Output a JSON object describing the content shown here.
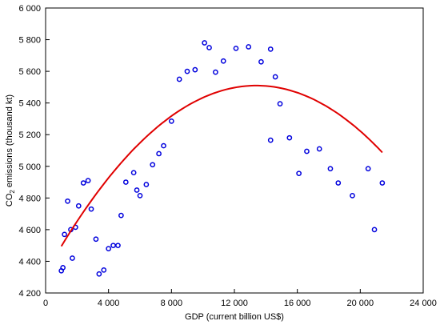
{
  "chart_data": {
    "type": "scatter",
    "xlabel": "GDP (current billion US$)",
    "ylabel_main": "CO",
    "ylabel_sub": "2",
    "ylabel_rest": " emissions (thousand kt)",
    "xlim": [
      0,
      24000
    ],
    "ylim": [
      4200,
      6000
    ],
    "x_ticks": [
      0,
      4000,
      8000,
      12000,
      16000,
      20000,
      24000
    ],
    "x_tick_labels": [
      "0",
      "4 000",
      "8 000",
      "12 000",
      "16 000",
      "20 000",
      "24 000"
    ],
    "y_ticks": [
      4200,
      4400,
      4600,
      4800,
      5000,
      5200,
      5400,
      5600,
      5800,
      6000
    ],
    "y_tick_labels": [
      "4 200",
      "4 400",
      "4 600",
      "4 800",
      "5 000",
      "5 200",
      "5 400",
      "5 600",
      "5 800",
      "6 000"
    ],
    "grid": false,
    "colors": {
      "points": "#0000dd",
      "fit": "#e00000",
      "axes": "#000000"
    },
    "points": [
      {
        "x": 1000,
        "y": 4340
      },
      {
        "x": 1100,
        "y": 4360
      },
      {
        "x": 1200,
        "y": 4570
      },
      {
        "x": 1400,
        "y": 4780
      },
      {
        "x": 1600,
        "y": 4600
      },
      {
        "x": 1700,
        "y": 4420
      },
      {
        "x": 1900,
        "y": 4615
      },
      {
        "x": 2100,
        "y": 4750
      },
      {
        "x": 2400,
        "y": 4895
      },
      {
        "x": 2700,
        "y": 4910
      },
      {
        "x": 2900,
        "y": 4730
      },
      {
        "x": 3200,
        "y": 4540
      },
      {
        "x": 3400,
        "y": 4320
      },
      {
        "x": 3700,
        "y": 4345
      },
      {
        "x": 4000,
        "y": 4480
      },
      {
        "x": 4300,
        "y": 4500
      },
      {
        "x": 4600,
        "y": 4500
      },
      {
        "x": 4800,
        "y": 4690
      },
      {
        "x": 5100,
        "y": 4900
      },
      {
        "x": 5600,
        "y": 4960
      },
      {
        "x": 5800,
        "y": 4850
      },
      {
        "x": 6000,
        "y": 4815
      },
      {
        "x": 6400,
        "y": 4885
      },
      {
        "x": 6800,
        "y": 5010
      },
      {
        "x": 7200,
        "y": 5080
      },
      {
        "x": 7500,
        "y": 5130
      },
      {
        "x": 8000,
        "y": 5285
      },
      {
        "x": 8500,
        "y": 5550
      },
      {
        "x": 9000,
        "y": 5600
      },
      {
        "x": 9500,
        "y": 5610
      },
      {
        "x": 10100,
        "y": 5780
      },
      {
        "x": 10400,
        "y": 5750
      },
      {
        "x": 10800,
        "y": 5595
      },
      {
        "x": 11300,
        "y": 5665
      },
      {
        "x": 12100,
        "y": 5745
      },
      {
        "x": 12900,
        "y": 5755
      },
      {
        "x": 13700,
        "y": 5660
      },
      {
        "x": 14300,
        "y": 5740
      },
      {
        "x": 14600,
        "y": 5565
      },
      {
        "x": 14300,
        "y": 5165
      },
      {
        "x": 14900,
        "y": 5395
      },
      {
        "x": 15500,
        "y": 5180
      },
      {
        "x": 16100,
        "y": 4955
      },
      {
        "x": 16600,
        "y": 5095
      },
      {
        "x": 17400,
        "y": 5110
      },
      {
        "x": 18100,
        "y": 4985
      },
      {
        "x": 18600,
        "y": 4895
      },
      {
        "x": 19500,
        "y": 4815
      },
      {
        "x": 20500,
        "y": 4985
      },
      {
        "x": 20900,
        "y": 4600
      },
      {
        "x": 21400,
        "y": 4895
      }
    ],
    "fit_curve": {
      "type": "quadratic",
      "x_range": [
        1000,
        21400
      ],
      "vertex_x": 13400,
      "vertex_y": 5510,
      "a": -6.6e-06
    }
  }
}
